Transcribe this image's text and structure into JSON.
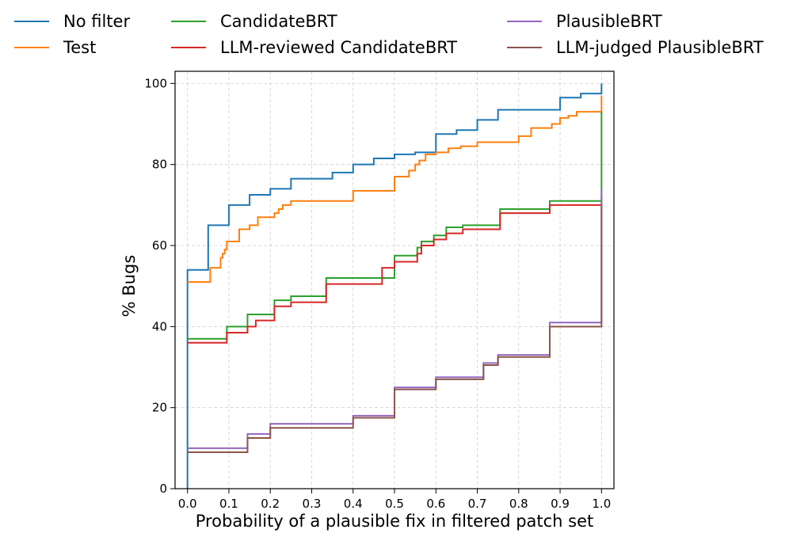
{
  "chart_data": {
    "type": "line",
    "step": true,
    "title": "",
    "xlabel": "Probability of a plausible fix in filtered patch set",
    "ylabel": "% Bugs",
    "xlim": [
      -0.03,
      1.03
    ],
    "ylim": [
      0,
      103
    ],
    "xticks": [
      "0.0",
      "0.1",
      "0.2",
      "0.3",
      "0.4",
      "0.5",
      "0.6",
      "0.7",
      "0.8",
      "0.9",
      "1.0"
    ],
    "yticks": [
      "0",
      "20",
      "40",
      "60",
      "80",
      "100"
    ],
    "grid": true,
    "legend_position": "top, outside plot, 3 columns",
    "series": [
      {
        "name": "No filter",
        "color": "#1f77b4",
        "x": [
          0.0,
          0.0,
          0.05,
          0.1,
          0.15,
          0.2,
          0.25,
          0.35,
          0.4,
          0.45,
          0.5,
          0.55,
          0.6,
          0.65,
          0.7,
          0.75,
          0.9,
          0.95,
          1.0,
          1.0
        ],
        "y": [
          0,
          54,
          65,
          70,
          72.5,
          74,
          76.5,
          78,
          80,
          81.5,
          82.5,
          83,
          87.5,
          88.5,
          91,
          93.5,
          96.5,
          97.5,
          97.5,
          100
        ]
      },
      {
        "name": "Test",
        "color": "#ff7f0e",
        "x": [
          0.0,
          0.055,
          0.08,
          0.085,
          0.09,
          0.095,
          0.1,
          0.125,
          0.15,
          0.17,
          0.2,
          0.21,
          0.22,
          0.23,
          0.25,
          0.28,
          0.33,
          0.35,
          0.4,
          0.5,
          0.535,
          0.55,
          0.56,
          0.575,
          0.6,
          0.63,
          0.66,
          0.7,
          0.8,
          0.83,
          0.86,
          0.88,
          0.9,
          0.92,
          0.94,
          1.0,
          1.0
        ],
        "y": [
          51,
          54.5,
          57,
          58,
          59,
          61,
          61,
          64,
          65,
          67,
          67,
          68,
          69,
          70,
          71,
          71,
          71,
          71,
          73.5,
          77,
          78.5,
          80,
          81,
          82.5,
          83,
          84,
          84.5,
          85.5,
          87,
          89,
          89,
          90,
          91.5,
          92,
          93,
          93,
          97
        ]
      },
      {
        "name": "CandidateBRT",
        "color": "#2ca02c",
        "x": [
          0.0,
          0.095,
          0.145,
          0.21,
          0.25,
          0.335,
          0.5,
          0.555,
          0.565,
          0.595,
          0.625,
          0.665,
          0.755,
          0.875,
          1.0,
          1.0
        ],
        "y": [
          37,
          40,
          43,
          46.5,
          47.5,
          52,
          57.5,
          59.5,
          61,
          62.5,
          64.5,
          65,
          69,
          71,
          71,
          93
        ]
      },
      {
        "name": "LLM-reviewed CandidateBRT",
        "color": "#d62728",
        "x": [
          0.0,
          0.095,
          0.145,
          0.165,
          0.21,
          0.25,
          0.335,
          0.47,
          0.5,
          0.555,
          0.565,
          0.595,
          0.625,
          0.665,
          0.755,
          0.875,
          1.0,
          1.0
        ],
        "y": [
          36,
          38.5,
          40,
          41.5,
          45,
          46,
          50.5,
          54.5,
          56,
          58,
          60,
          61.5,
          63,
          64,
          68,
          70,
          70,
          72
        ]
      },
      {
        "name": "PlausibleBRT",
        "color": "#9467bd",
        "x": [
          0.0,
          0.145,
          0.2,
          0.4,
          0.5,
          0.6,
          0.715,
          0.75,
          0.875,
          1.0,
          1.0
        ],
        "y": [
          10,
          13.5,
          16,
          18,
          25,
          27.5,
          31,
          33,
          41,
          41,
          74
        ]
      },
      {
        "name": "LLM-judged PlausibleBRT",
        "color": "#8c564b",
        "x": [
          0.0,
          0.145,
          0.2,
          0.4,
          0.5,
          0.6,
          0.715,
          0.75,
          0.875,
          1.0,
          1.0
        ],
        "y": [
          9,
          12.5,
          15,
          17.5,
          24.5,
          27,
          30.5,
          32.5,
          40,
          40,
          70
        ]
      }
    ]
  }
}
